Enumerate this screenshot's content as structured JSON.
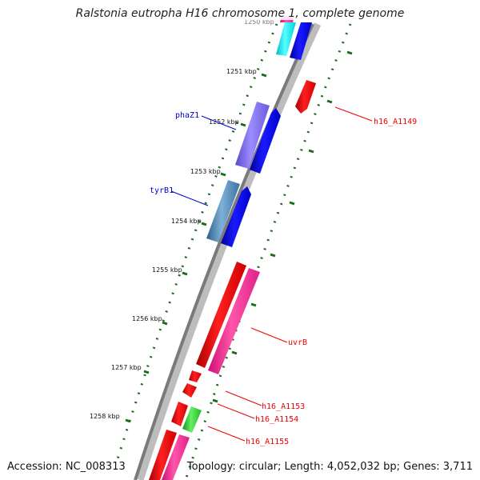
{
  "title": "Ralstonia eutropha H16 chromosome 1, complete genome",
  "footer": {
    "accession": "Accession: NC_008313",
    "summary": "Topology: circular; Length: 4,052,032 bp; Genes: 3,711"
  },
  "ruler": {
    "first_label_partial": "1250 kbp",
    "tick_labels": [
      "1251 kbp",
      "1252 kbp",
      "1253 kbp",
      "1254 kbp",
      "1255 kbp",
      "1256 kbp",
      "1257 kbp",
      "1258 kbp"
    ]
  },
  "gene_labels": {
    "phaZ1": "phaZ1",
    "tyrB1": "tyrB1",
    "h16_A1149": "h16_A1149",
    "uvrB": "uvrB",
    "h16_A1153": "h16_A1153",
    "h16_A1154": "h16_A1154",
    "h16_A1155": "h16_A1155"
  },
  "colors": {
    "backbone": "#808080",
    "forward_cds": "#0000e0",
    "reverse_cds": "#ee0000",
    "pink": "#ff3399",
    "cyan": "#00e5ee",
    "purple": "#7b68ee",
    "steel": "#4682b4",
    "green": "#22cc22",
    "ticks": "#1a6b1a"
  }
}
